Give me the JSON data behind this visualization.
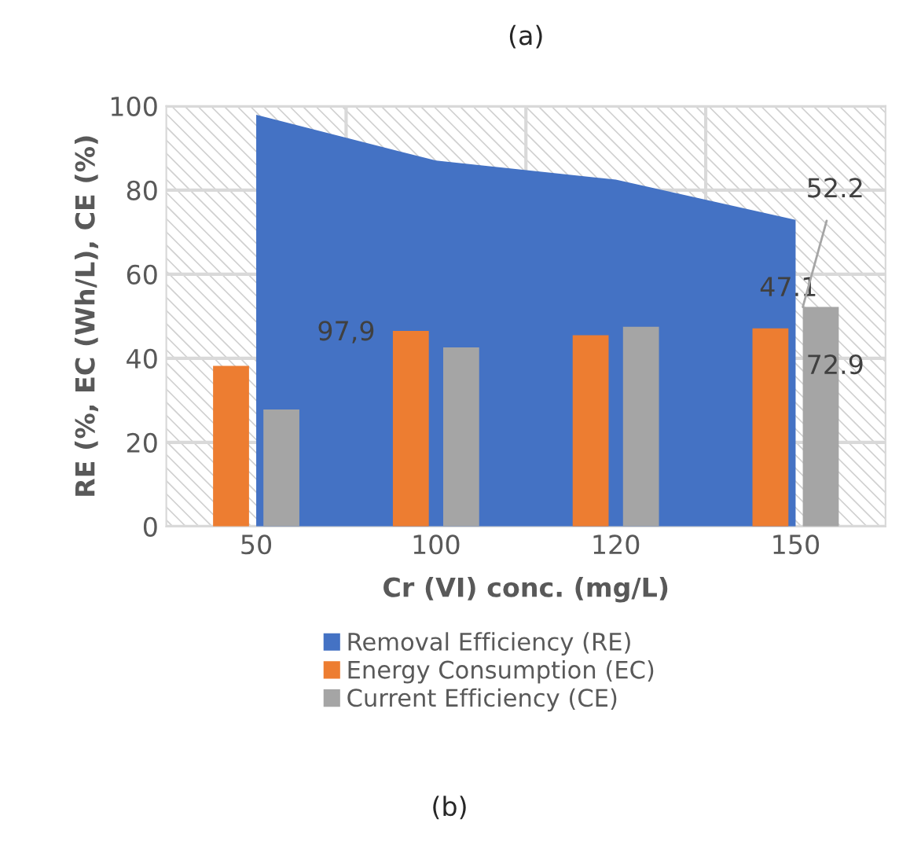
{
  "chart_data": {
    "type": "bar",
    "title": "(a)",
    "xlabel": "Cr (VI) conc. (mg/L)",
    "ylabel": "RE (%, EC (Wh/L), CE (%)",
    "categories": [
      "50",
      "100",
      "120",
      "150"
    ],
    "series": [
      {
        "name": "Removal Efficiency (RE)",
        "type": "area",
        "color": "#4472c4",
        "values": [
          97.9,
          87,
          82.5,
          72.9
        ]
      },
      {
        "name": "Energy Consumption (EC)",
        "color": "#ed7d31",
        "values": [
          38.2,
          46.5,
          45.5,
          47.1
        ]
      },
      {
        "name": "Current Efficiency (CE)",
        "color": "#a5a5a5",
        "values": [
          27.8,
          42.6,
          47.5,
          52.2
        ]
      }
    ],
    "ylim": [
      0,
      100
    ],
    "yticks": [
      0,
      20,
      40,
      60,
      80,
      100
    ],
    "grid": true,
    "legend": "bottom",
    "annotations": [
      "97,9",
      "47.1",
      "72.9",
      {
        "text": "52.2",
        "x": "150",
        "y": 52.2
      },
      "(b)"
    ]
  }
}
